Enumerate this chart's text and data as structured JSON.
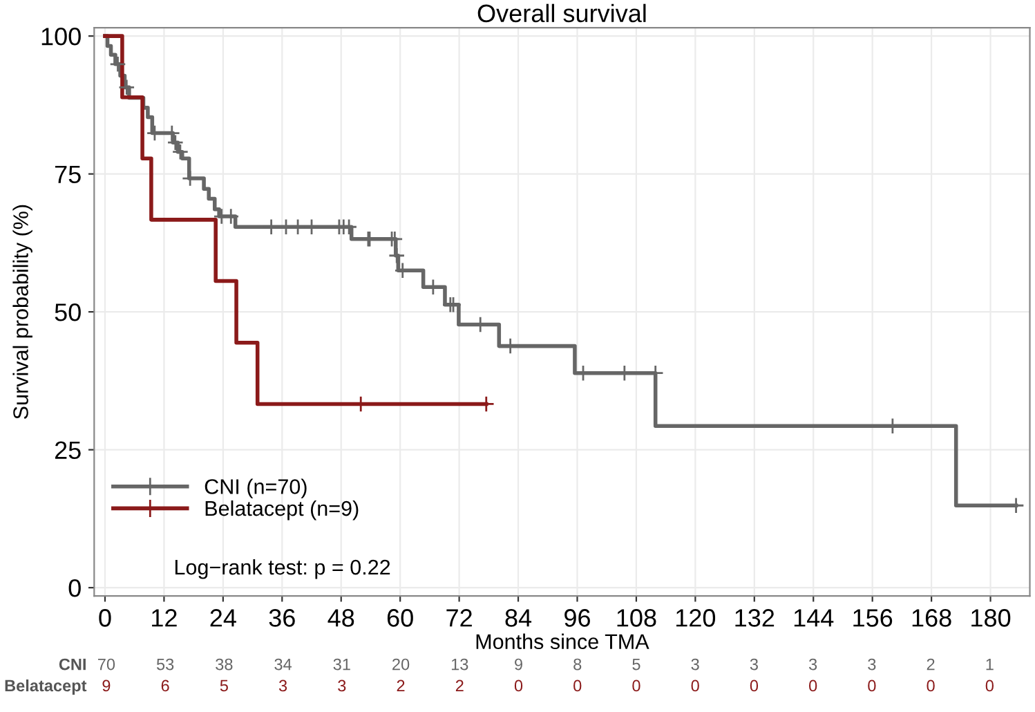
{
  "chart_data": [
    {
      "type": "step",
      "title": "Overall survival",
      "xlabel": "Months since TMA",
      "ylabel": "Survival probability (%)",
      "xlim": [
        -2.2,
        188
      ],
      "xticks": [
        0,
        12,
        24,
        36,
        48,
        60,
        72,
        84,
        96,
        108,
        120,
        132,
        144,
        156,
        168,
        180
      ],
      "ylim": [
        -1.5,
        101.5
      ],
      "yticks": [
        0,
        25,
        50,
        75,
        100
      ],
      "grid": true,
      "legend": "bottom left",
      "annotations": [
        "Log−rank test: p = 0.22"
      ],
      "series": [
        {
          "name": "CNI (n=70)",
          "color": "#666666",
          "type": "step",
          "marker": "none",
          "x": [
            0,
            0.5,
            1.2,
            2.1,
            3.1,
            4.0,
            4.9,
            7.8,
            8.7,
            9.6,
            13.8,
            14.8,
            15.7,
            17.1,
            20.1,
            21.1,
            22.3,
            23.2,
            26.5,
            50.1,
            59.1,
            59.6,
            64.7,
            69.1,
            71.9,
            80.1,
            95.5,
            111.9,
            173.0,
            185.2
          ],
          "values": [
            100,
            98.2,
            96.6,
            94.9,
            92.8,
            90.7,
            88.8,
            87.0,
            85.3,
            82.4,
            80.7,
            79.0,
            77.8,
            74.2,
            72.3,
            70.5,
            68.6,
            67.3,
            65.4,
            63.2,
            60.2,
            57.5,
            54.5,
            51.3,
            47.7,
            43.8,
            38.9,
            29.3,
            14.9,
            14.9
          ]
        },
        {
          "name": "Belatacept (n=9)",
          "color": "#8b1a1a",
          "type": "step",
          "marker": "none",
          "x": [
            0,
            3.5,
            7.6,
            9.4,
            22.5,
            26.7,
            31.0,
            77.5
          ],
          "values": [
            100,
            88.9,
            77.8,
            66.7,
            55.6,
            44.4,
            33.3,
            33.3
          ]
        },
        {
          "color": "#666666",
          "type": "scatter",
          "marker": "cross",
          "x": [
            2.6,
            4.4,
            10.1,
            13.6,
            14.3,
            15.3,
            17.3,
            23.7,
            25.6,
            33.8,
            36.8,
            39.2,
            42.0,
            47.6,
            48.5,
            49.6,
            53.5,
            53.8,
            58.3,
            58.9,
            59.3,
            60.5,
            66.7,
            70.2,
            70.8,
            76.3,
            82.4,
            97.2,
            105.6,
            111.9,
            160.1,
            185.2
          ],
          "values": [
            94.9,
            90.7,
            82.4,
            82.4,
            80.7,
            79.0,
            74.2,
            67.3,
            67.3,
            65.4,
            65.4,
            65.4,
            65.4,
            65.4,
            65.4,
            65.4,
            63.2,
            63.2,
            63.2,
            63.2,
            60.2,
            57.5,
            54.5,
            51.3,
            51.3,
            47.7,
            43.8,
            38.9,
            38.9,
            38.9,
            29.3,
            14.9
          ]
        },
        {
          "color": "#8b1a1a",
          "type": "scatter",
          "marker": "cross",
          "x": [
            52.0,
            77.5
          ],
          "values": [
            33.3,
            33.3
          ]
        }
      ]
    },
    {
      "type": "heatmap",
      "data_labels": true,
      "categories": [
        null,
        null,
        null,
        null,
        null,
        null,
        null,
        null,
        null,
        null,
        null,
        null,
        null,
        null,
        null,
        null
      ],
      "y_categories": [
        "CNI",
        "Belatacept"
      ],
      "cells": [
        [
          70,
          53,
          38,
          34,
          31,
          20,
          13,
          9,
          8,
          5,
          3,
          3,
          3,
          3,
          2,
          1
        ],
        [
          9,
          6,
          5,
          3,
          3,
          2,
          2,
          0,
          0,
          0,
          0,
          0,
          0,
          0,
          0,
          0
        ]
      ]
    }
  ]
}
